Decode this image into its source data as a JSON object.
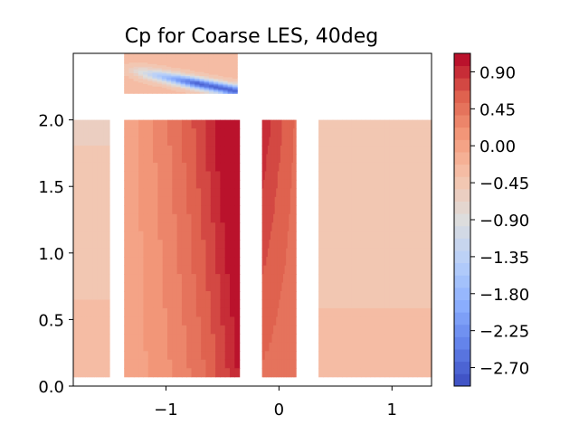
{
  "chart_data": {
    "type": "heatmap",
    "title": "Cp for Coarse LES, 40deg",
    "xlabel": "",
    "ylabel": "",
    "xlim": [
      -1.82,
      1.35
    ],
    "ylim": [
      0.0,
      2.5
    ],
    "x_ticks": [
      -1,
      0,
      1
    ],
    "x_tick_labels": [
      "−1",
      "0",
      "1"
    ],
    "y_ticks": [
      0.0,
      0.5,
      1.0,
      1.5,
      2.0
    ],
    "y_tick_labels": [
      "0.0",
      "0.5",
      "1.0",
      "1.5",
      "2.0"
    ],
    "colorbar": {
      "colormap": "coolwarm",
      "vmin": -2.925,
      "vmax": 1.125,
      "ticks": [
        0.9,
        0.45,
        0.0,
        -0.45,
        -0.9,
        -1.35,
        -1.8,
        -2.25,
        -2.7
      ],
      "tick_labels": [
        "0.90",
        "0.45",
        "0.00",
        "−0.45",
        "−0.90",
        "−1.35",
        "−1.80",
        "−2.25",
        "−2.70"
      ],
      "levels": 27
    },
    "panels": [
      {
        "name": "left face",
        "x": [
          -1.82,
          -1.5
        ],
        "y": [
          0.07,
          2.0
        ],
        "cp": [
          [
            -0.3,
            -0.3
          ],
          [
            -0.55,
            -0.55
          ]
        ]
      },
      {
        "name": "windward face",
        "x": [
          -1.37,
          -0.35
        ],
        "y": [
          0.07,
          2.0
        ],
        "cp": [
          [
            -0.05,
            0.55
          ],
          [
            -0.05,
            1.0
          ]
        ]
      },
      {
        "name": "small face",
        "x": [
          -0.15,
          0.15
        ],
        "y": [
          0.07,
          2.0
        ],
        "cp": [
          [
            0.5,
            0.4
          ],
          [
            0.95,
            0.5
          ]
        ]
      },
      {
        "name": "right face",
        "x": [
          0.35,
          1.35
        ],
        "y": [
          0.07,
          2.0
        ],
        "cp": [
          [
            -0.35,
            -0.35
          ],
          [
            -0.45,
            -0.45
          ]
        ]
      },
      {
        "name": "roof",
        "x": [
          -1.37,
          -0.37
        ],
        "y": [
          2.2,
          2.5
        ],
        "cp": [
          [
            -0.6,
            -2.7
          ],
          [
            -0.3,
            -0.3
          ]
        ]
      }
    ]
  }
}
